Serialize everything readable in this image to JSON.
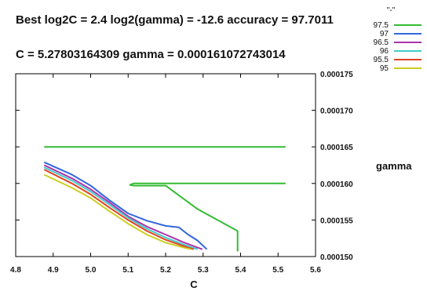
{
  "chart_data": {
    "type": "line",
    "title_line1": "Best log2C = 2.4 log2(gamma) = -12.6 accuracy = 97.7011",
    "title_line2": "C = 5.27803164309  gamma = 0.000161072743014",
    "xlabel": "C",
    "ylabel": "gamma",
    "xlim": [
      4.8,
      5.6
    ],
    "ylim": [
      0.00015,
      0.000175
    ],
    "x_ticks": [
      "4.8",
      "4.9",
      "5.0",
      "5.1",
      "5.2",
      "5.3",
      "5.4",
      "5.5",
      "5.6"
    ],
    "y_ticks": [
      "0.000150",
      "0.000155",
      "0.000160",
      "0.000165",
      "0.000170",
      "0.000175"
    ],
    "legend_title": "\"-\"",
    "legend_placement": "top-right",
    "grid": false,
    "series": [
      {
        "name": "97.5",
        "color": "#33bb33",
        "segments": [
          [
            [
              4.876,
              0.000165
            ],
            [
              5.52,
              0.000165
            ]
          ],
          [
            [
              5.52,
              0.00016
            ],
            [
              5.115,
              0.00016
            ],
            [
              5.105,
              0.0001598
            ],
            [
              5.115,
              0.0001597
            ],
            [
              5.2,
              0.0001597
            ],
            [
              5.285,
              0.0001565
            ],
            [
              5.392,
              0.0001535
            ],
            [
              5.392,
              0.0001507
            ]
          ]
        ]
      },
      {
        "name": "97",
        "color": "#3366dd",
        "segments": [
          [
            [
              4.876,
              0.0001629
            ],
            [
              4.95,
              0.0001612
            ],
            [
              5.0,
              0.0001597
            ],
            [
              5.05,
              0.0001577
            ],
            [
              5.1,
              0.0001559
            ],
            [
              5.15,
              0.0001549
            ],
            [
              5.2,
              0.0001542
            ],
            [
              5.235,
              0.000154
            ],
            [
              5.26,
              0.000153
            ],
            [
              5.285,
              0.0001522
            ],
            [
              5.31,
              0.000151
            ]
          ]
        ]
      },
      {
        "name": "96.5",
        "color": "#aa33aa",
        "segments": [
          [
            [
              4.876,
              0.0001625
            ],
            [
              4.95,
              0.0001607
            ],
            [
              5.0,
              0.0001592
            ],
            [
              5.05,
              0.0001574
            ],
            [
              5.1,
              0.0001555
            ],
            [
              5.15,
              0.0001541
            ],
            [
              5.2,
              0.000153
            ],
            [
              5.25,
              0.0001519
            ],
            [
              5.298,
              0.000151
            ]
          ]
        ]
      },
      {
        "name": "96",
        "color": "#44cccc",
        "segments": [
          [
            [
              4.876,
              0.0001622
            ],
            [
              4.95,
              0.0001604
            ],
            [
              5.0,
              0.0001589
            ],
            [
              5.05,
              0.0001571
            ],
            [
              5.1,
              0.0001553
            ],
            [
              5.15,
              0.0001538
            ],
            [
              5.2,
              0.0001526
            ],
            [
              5.25,
              0.0001516
            ],
            [
              5.285,
              0.000151
            ]
          ]
        ]
      },
      {
        "name": "95.5",
        "color": "#dd4422",
        "segments": [
          [
            [
              4.876,
              0.0001619
            ],
            [
              4.95,
              0.00016
            ],
            [
              5.0,
              0.0001585
            ],
            [
              5.05,
              0.0001567
            ],
            [
              5.1,
              0.000155
            ],
            [
              5.15,
              0.0001535
            ],
            [
              5.2,
              0.0001523
            ],
            [
              5.25,
              0.0001514
            ],
            [
              5.275,
              0.000151
            ]
          ]
        ]
      },
      {
        "name": "95",
        "color": "#cccc22",
        "segments": [
          [
            [
              4.876,
              0.0001612
            ],
            [
              4.95,
              0.0001594
            ],
            [
              5.0,
              0.000158
            ],
            [
              5.05,
              0.0001562
            ],
            [
              5.1,
              0.0001545
            ],
            [
              5.15,
              0.000153
            ],
            [
              5.2,
              0.0001519
            ],
            [
              5.25,
              0.0001512
            ],
            [
              5.268,
              0.000151
            ]
          ]
        ]
      }
    ]
  }
}
